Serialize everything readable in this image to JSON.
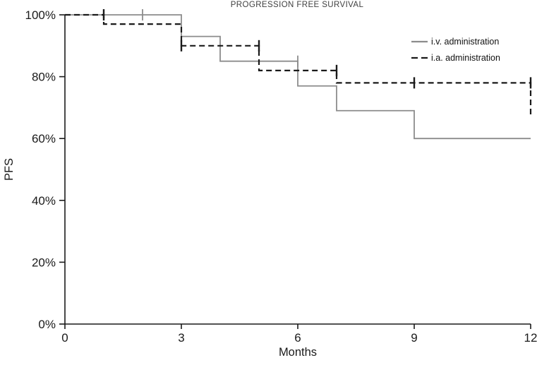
{
  "chart_data": {
    "type": "line",
    "subtype": "kaplan_meier_step",
    "title": "PROGRESSION FREE SURVIVAL",
    "xlabel": "Months",
    "ylabel": "PFS",
    "xlim": [
      0,
      12
    ],
    "ylim": [
      0,
      100
    ],
    "xticks": [
      0,
      3,
      6,
      9,
      12
    ],
    "yticks": [
      0,
      20,
      40,
      60,
      80,
      100
    ],
    "ytick_suffix": "%",
    "grid": false,
    "legend_position": "top-right",
    "axis_color": "#1a1a1a",
    "series": [
      {
        "name": "i.v. administration",
        "color": "#8c8c8c",
        "style": "solid",
        "step_points": [
          [
            0,
            100
          ],
          [
            3,
            100
          ],
          [
            3,
            93
          ],
          [
            4,
            93
          ],
          [
            4,
            85
          ],
          [
            6,
            85
          ],
          [
            6,
            77
          ],
          [
            7,
            77
          ],
          [
            7,
            69
          ],
          [
            9,
            69
          ],
          [
            9,
            60
          ],
          [
            12,
            60
          ]
        ],
        "censor_marks": [
          [
            2,
            100
          ],
          [
            6,
            85
          ]
        ]
      },
      {
        "name": "i.a. administration",
        "color": "#1a1a1a",
        "style": "dashed",
        "step_points": [
          [
            0,
            100
          ],
          [
            1,
            100
          ],
          [
            1,
            97
          ],
          [
            3,
            97
          ],
          [
            3,
            90
          ],
          [
            5,
            90
          ],
          [
            5,
            82
          ],
          [
            7,
            82
          ],
          [
            7,
            78
          ],
          [
            12,
            78
          ],
          [
            12,
            67
          ]
        ],
        "censor_marks": [
          [
            1,
            100
          ],
          [
            3,
            90
          ],
          [
            5,
            90
          ],
          [
            7,
            82
          ],
          [
            9,
            78
          ],
          [
            12,
            78
          ]
        ]
      }
    ]
  }
}
